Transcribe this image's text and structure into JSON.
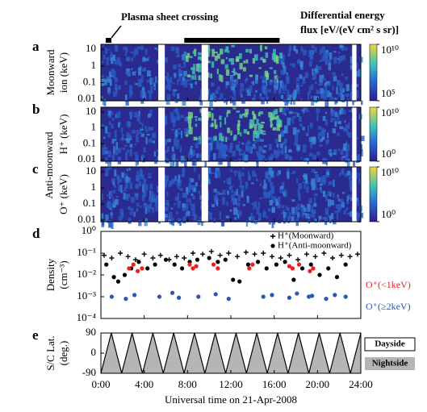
{
  "header": {
    "plasma_sheet_label": "Plasma sheet crossing",
    "colorbar_title": [
      "Differential energy",
      "flux [eV/(eV cm² s sr)]"
    ]
  },
  "plasma_sheet": [
    7.7,
    16.5
  ],
  "shared_ylabel": "Anti-moonward",
  "xaxis": {
    "lim": [
      0,
      24
    ],
    "label": "Universal time on 21-Apr-2008",
    "ticks": [
      {
        "value": 0,
        "label": "0:00"
      },
      {
        "value": 4,
        "label": "4:00"
      },
      {
        "value": 8,
        "label": "8:00"
      },
      {
        "value": 12,
        "label": "12:00"
      },
      {
        "value": 16,
        "label": "16:00"
      },
      {
        "value": 20,
        "label": "20:00"
      },
      {
        "value": 24,
        "label": "24:00"
      }
    ]
  },
  "chart_data": [
    {
      "type": "heatmap",
      "panel": "a",
      "ylabel": [
        "Moonward",
        "ion (keV)"
      ],
      "yscale": "log",
      "ylim": [
        0.008,
        20
      ],
      "yticks": [
        10,
        1,
        0.1,
        0.01
      ],
      "data_gaps": [
        [
          5.3,
          5.9
        ],
        [
          9.3,
          9.9
        ],
        [
          23.2,
          23.6
        ]
      ],
      "colorbar": {
        "lim": [
          100000,
          10000000000
        ],
        "ticks": [
          {
            "value": 10000000000,
            "label": "10¹⁰"
          },
          {
            "value": 100000,
            "label": "10⁵"
          }
        ]
      }
    },
    {
      "type": "heatmap",
      "panel": "b",
      "ylabel": [
        "H⁺ (keV)"
      ],
      "yscale": "log",
      "ylim": [
        0.008,
        20
      ],
      "yticks": [
        10,
        1,
        0.1,
        0.01
      ],
      "data_gaps": [
        [
          5.3,
          5.9
        ],
        [
          9.3,
          9.9
        ],
        [
          23.2,
          23.6
        ]
      ],
      "colorbar": {
        "lim": [
          1,
          10000000000
        ],
        "ticks": [
          {
            "value": 10000000000,
            "label": "10¹⁰"
          },
          {
            "value": 1,
            "label": "10⁰"
          }
        ]
      }
    },
    {
      "type": "heatmap",
      "panel": "c",
      "ylabel": [
        "O⁺ (keV)"
      ],
      "yscale": "log",
      "ylim": [
        0.008,
        20
      ],
      "yticks": [
        10,
        1,
        0.1,
        0.01
      ],
      "data_gaps": [
        [
          5.3,
          5.9
        ],
        [
          9.3,
          9.9
        ],
        [
          23.2,
          23.6
        ]
      ],
      "colorbar": {
        "lim": [
          1,
          10000000000
        ],
        "ticks": [
          {
            "value": 10000000000,
            "label": "10¹⁰"
          },
          {
            "value": 1,
            "label": "10⁰"
          }
        ]
      }
    },
    {
      "type": "scatter",
      "panel": "d",
      "ylabel": [
        "Density",
        "(cm⁻³)"
      ],
      "yscale": "log",
      "ylim": [
        0.0001,
        1
      ],
      "yticks": [
        {
          "value": 1,
          "label": "10⁰"
        },
        {
          "value": 0.1,
          "label": "10⁻¹"
        },
        {
          "value": 0.01,
          "label": "10⁻²"
        },
        {
          "value": 0.001,
          "label": "10⁻³"
        },
        {
          "value": 0.0001,
          "label": "10⁻⁴"
        }
      ],
      "series": [
        {
          "name": "H⁺(Moonward)",
          "marker": "plus",
          "color": "#000000",
          "x": [
            0.3,
            1,
            1.8,
            2.5,
            3.2,
            4,
            4.8,
            5.5,
            6.3,
            7,
            7.7,
            8.5,
            9.4,
            10.2,
            11,
            11.8,
            12.6,
            13.4,
            14.2,
            15,
            15.8,
            16.6,
            17.4,
            18.2,
            19,
            19.8,
            20.6,
            21.4,
            22.2,
            23,
            23.7
          ],
          "values": [
            0.08,
            0.06,
            0.1,
            0.07,
            0.05,
            0.09,
            0.06,
            0.08,
            0.05,
            0.07,
            0.06,
            0.1,
            0.09,
            0.12,
            0.08,
            0.1,
            0.07,
            0.11,
            0.09,
            0.1,
            0.07,
            0.06,
            0.08,
            0.05,
            0.09,
            0.07,
            0.1,
            0.06,
            0.08,
            0.07,
            0.09
          ]
        },
        {
          "name": "H⁺(Anti-moonward)",
          "marker": "dot",
          "color": "#000000",
          "x": [
            0.5,
            1.2,
            1.6,
            2.2,
            2.8,
            3.5,
            4.3,
            5,
            6,
            6.8,
            7.5,
            8.2,
            8.9,
            10,
            10.8,
            11.5,
            12.2,
            12.8,
            13.6,
            14.5,
            15.3,
            16.2,
            17,
            17.8,
            18.6,
            19.4,
            20.2,
            21,
            21.8,
            22.6
          ],
          "values": [
            0.03,
            0.008,
            0.005,
            0.01,
            0.02,
            0.04,
            0.02,
            0.03,
            0.05,
            0.03,
            0.02,
            0.04,
            0.05,
            0.06,
            0.04,
            0.05,
            0.006,
            0.005,
            0.03,
            0.04,
            0.02,
            0.03,
            0.04,
            0.006,
            0.02,
            0.03,
            0.01,
            0.02,
            0.008,
            0.03
          ]
        },
        {
          "name": "O⁺(<1keV)",
          "marker": "dot",
          "color": "#e8211f",
          "x": [
            2.6,
            3,
            3.4,
            3.8,
            8.2,
            8.5,
            8.8,
            10.4,
            10.8,
            13.7,
            14,
            17.4,
            17.7,
            18.3,
            19.3,
            19.6
          ],
          "values": [
            0.02,
            0.03,
            0.015,
            0.02,
            0.03,
            0.02,
            0.025,
            0.03,
            0.02,
            0.02,
            0.03,
            0.025,
            0.02,
            0.03,
            0.015,
            0.02
          ]
        },
        {
          "name": "O⁺(≥2keV)",
          "marker": "dot",
          "color": "#2a55b8",
          "x": [
            1,
            2.3,
            3.1,
            5.4,
            6.6,
            7.2,
            9,
            10.6,
            11.8,
            15,
            15.8,
            17.4,
            18.1,
            19.2,
            19.5,
            20.8,
            21.6,
            22.6
          ],
          "values": [
            0.001,
            0.0008,
            0.0012,
            0.001,
            0.0015,
            0.0009,
            0.001,
            0.0013,
            0.0008,
            0.001,
            0.0012,
            0.0009,
            0.0014,
            0.001,
            0.0011,
            0.0008,
            0.0012,
            0.001
          ]
        }
      ]
    },
    {
      "type": "line",
      "panel": "e",
      "ylabel": [
        "S/C Lat.",
        "(deg.)"
      ],
      "ylim": [
        -90,
        90
      ],
      "yticks": [
        90,
        0,
        -90
      ],
      "color": "#000000",
      "region_labels": [
        "Dayside",
        "Nightside"
      ],
      "x": [
        0,
        0.96,
        1.92,
        2.88,
        3.84,
        4.8,
        5.76,
        6.72,
        7.68,
        8.64,
        9.6,
        10.56,
        11.52,
        12.48,
        13.44,
        14.4,
        15.36,
        16.32,
        17.28,
        18.24,
        19.2,
        20.16,
        21.12,
        22.08,
        23.04,
        24
      ],
      "values": [
        -90,
        90,
        -90,
        90,
        -90,
        90,
        -90,
        90,
        -90,
        90,
        -90,
        90,
        -90,
        90,
        -90,
        90,
        -90,
        90,
        -90,
        90,
        -90,
        90,
        -90,
        90,
        -90,
        90
      ]
    }
  ]
}
